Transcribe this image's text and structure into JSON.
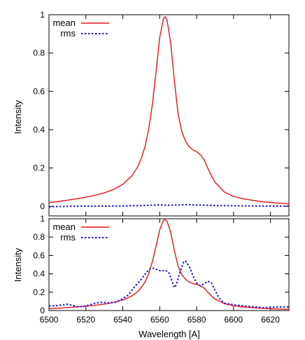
{
  "chart_data": [
    {
      "type": "line",
      "title": "",
      "xlabel": "",
      "ylabel": "Intensity",
      "xlim": [
        6500,
        6630
      ],
      "ylim": [
        -0.05,
        1.0
      ],
      "grid": false,
      "legend_position": "top-left",
      "x_ticks": [
        6500,
        6520,
        6540,
        6560,
        6580,
        6600,
        6620
      ],
      "x_tick_labels_visible": false,
      "y_ticks": [
        0,
        0.2,
        0.4,
        0.6,
        0.8,
        1
      ],
      "y_tick_labels": [
        "0",
        "0.2",
        "0.4",
        "0.6",
        "0.8",
        "1"
      ],
      "series": [
        {
          "name": "mean",
          "color": "#e8141c",
          "style": "solid",
          "points": [
            [
              6500,
              0.02
            ],
            [
              6505,
              0.025
            ],
            [
              6510,
              0.032
            ],
            [
              6515,
              0.04
            ],
            [
              6520,
              0.048
            ],
            [
              6525,
              0.058
            ],
            [
              6530,
              0.07
            ],
            [
              6535,
              0.088
            ],
            [
              6540,
              0.115
            ],
            [
              6545,
              0.16
            ],
            [
              6548,
              0.205
            ],
            [
              6550,
              0.25
            ],
            [
              6552,
              0.31
            ],
            [
              6554,
              0.4
            ],
            [
              6556,
              0.53
            ],
            [
              6558,
              0.7
            ],
            [
              6560,
              0.88
            ],
            [
              6562,
              0.98
            ],
            [
              6563,
              0.99
            ],
            [
              6564,
              0.97
            ],
            [
              6566,
              0.85
            ],
            [
              6568,
              0.65
            ],
            [
              6570,
              0.48
            ],
            [
              6572,
              0.39
            ],
            [
              6574,
              0.34
            ],
            [
              6576,
              0.31
            ],
            [
              6578,
              0.295
            ],
            [
              6580,
              0.285
            ],
            [
              6582,
              0.27
            ],
            [
              6584,
              0.245
            ],
            [
              6586,
              0.2
            ],
            [
              6588,
              0.16
            ],
            [
              6590,
              0.125
            ],
            [
              6595,
              0.075
            ],
            [
              6600,
              0.052
            ],
            [
              6605,
              0.04
            ],
            [
              6610,
              0.032
            ],
            [
              6615,
              0.025
            ],
            [
              6620,
              0.02
            ],
            [
              6625,
              0.016
            ],
            [
              6630,
              0.013
            ]
          ]
        },
        {
          "name": "rms",
          "color": "#1a1ad0",
          "style": "dotted",
          "points": [
            [
              6500,
              -0.002
            ],
            [
              6510,
              0.0
            ],
            [
              6520,
              0.001
            ],
            [
              6530,
              0.001
            ],
            [
              6540,
              0.002
            ],
            [
              6550,
              0.004
            ],
            [
              6555,
              0.006
            ],
            [
              6560,
              0.008
            ],
            [
              6565,
              0.006
            ],
            [
              6570,
              0.007
            ],
            [
              6575,
              0.009
            ],
            [
              6580,
              0.007
            ],
            [
              6585,
              0.006
            ],
            [
              6590,
              0.004
            ],
            [
              6600,
              0.003
            ],
            [
              6610,
              0.002
            ],
            [
              6620,
              0.001
            ],
            [
              6630,
              0.001
            ]
          ]
        }
      ]
    },
    {
      "type": "line",
      "title": "",
      "xlabel": "Wavelength [A]",
      "ylabel": "Intensity",
      "xlim": [
        6500,
        6630
      ],
      "ylim": [
        0,
        1.0
      ],
      "grid": false,
      "legend_position": "top-left",
      "x_ticks": [
        6500,
        6520,
        6540,
        6560,
        6580,
        6600,
        6620
      ],
      "x_tick_labels": [
        "6500",
        "6520",
        "6540",
        "6560",
        "6580",
        "6600",
        "6620"
      ],
      "y_ticks": [
        0,
        0.2,
        0.4,
        0.6,
        0.8,
        1
      ],
      "y_tick_labels": [
        "0",
        "0.2",
        "0.4",
        "0.6",
        "0.8",
        "1"
      ],
      "series": [
        {
          "name": "mean",
          "color": "#e8141c",
          "style": "solid",
          "points": [
            [
              6500,
              0.02
            ],
            [
              6505,
              0.025
            ],
            [
              6510,
              0.032
            ],
            [
              6515,
              0.04
            ],
            [
              6520,
              0.048
            ],
            [
              6525,
              0.058
            ],
            [
              6530,
              0.07
            ],
            [
              6535,
              0.088
            ],
            [
              6540,
              0.115
            ],
            [
              6545,
              0.16
            ],
            [
              6548,
              0.205
            ],
            [
              6550,
              0.25
            ],
            [
              6552,
              0.31
            ],
            [
              6554,
              0.4
            ],
            [
              6556,
              0.53
            ],
            [
              6558,
              0.7
            ],
            [
              6560,
              0.88
            ],
            [
              6562,
              0.98
            ],
            [
              6563,
              0.99
            ],
            [
              6564,
              0.97
            ],
            [
              6566,
              0.85
            ],
            [
              6568,
              0.65
            ],
            [
              6570,
              0.48
            ],
            [
              6572,
              0.39
            ],
            [
              6574,
              0.34
            ],
            [
              6576,
              0.31
            ],
            [
              6578,
              0.295
            ],
            [
              6580,
              0.285
            ],
            [
              6582,
              0.27
            ],
            [
              6584,
              0.245
            ],
            [
              6586,
              0.2
            ],
            [
              6588,
              0.16
            ],
            [
              6590,
              0.125
            ],
            [
              6595,
              0.075
            ],
            [
              6600,
              0.052
            ],
            [
              6605,
              0.04
            ],
            [
              6610,
              0.032
            ],
            [
              6615,
              0.025
            ],
            [
              6620,
              0.02
            ],
            [
              6625,
              0.016
            ],
            [
              6630,
              0.013
            ]
          ]
        },
        {
          "name": "rms",
          "color": "#1a1ad0",
          "style": "dotted",
          "points": [
            [
              6500,
              0.05
            ],
            [
              6505,
              0.055
            ],
            [
              6510,
              0.07
            ],
            [
              6513,
              0.055
            ],
            [
              6516,
              0.04
            ],
            [
              6520,
              0.05
            ],
            [
              6525,
              0.08
            ],
            [
              6528,
              0.09
            ],
            [
              6532,
              0.085
            ],
            [
              6536,
              0.09
            ],
            [
              6540,
              0.13
            ],
            [
              6543,
              0.17
            ],
            [
              6546,
              0.25
            ],
            [
              6550,
              0.34
            ],
            [
              6553,
              0.42
            ],
            [
              6555,
              0.46
            ],
            [
              6557,
              0.46
            ],
            [
              6559,
              0.44
            ],
            [
              6561,
              0.43
            ],
            [
              6563,
              0.44
            ],
            [
              6565,
              0.41
            ],
            [
              6567,
              0.3
            ],
            [
              6568,
              0.25
            ],
            [
              6569,
              0.28
            ],
            [
              6571,
              0.42
            ],
            [
              6573,
              0.53
            ],
            [
              6574,
              0.54
            ],
            [
              6576,
              0.48
            ],
            [
              6578,
              0.38
            ],
            [
              6580,
              0.3
            ],
            [
              6582,
              0.27
            ],
            [
              6584,
              0.29
            ],
            [
              6586,
              0.32
            ],
            [
              6588,
              0.3
            ],
            [
              6590,
              0.22
            ],
            [
              6592,
              0.14
            ],
            [
              6595,
              0.08
            ],
            [
              6598,
              0.07
            ],
            [
              6601,
              0.06
            ],
            [
              6604,
              0.055
            ],
            [
              6608,
              0.045
            ],
            [
              6612,
              0.04
            ],
            [
              6616,
              0.03
            ],
            [
              6620,
              0.035
            ],
            [
              6625,
              0.04
            ],
            [
              6630,
              0.04
            ]
          ]
        }
      ]
    }
  ]
}
